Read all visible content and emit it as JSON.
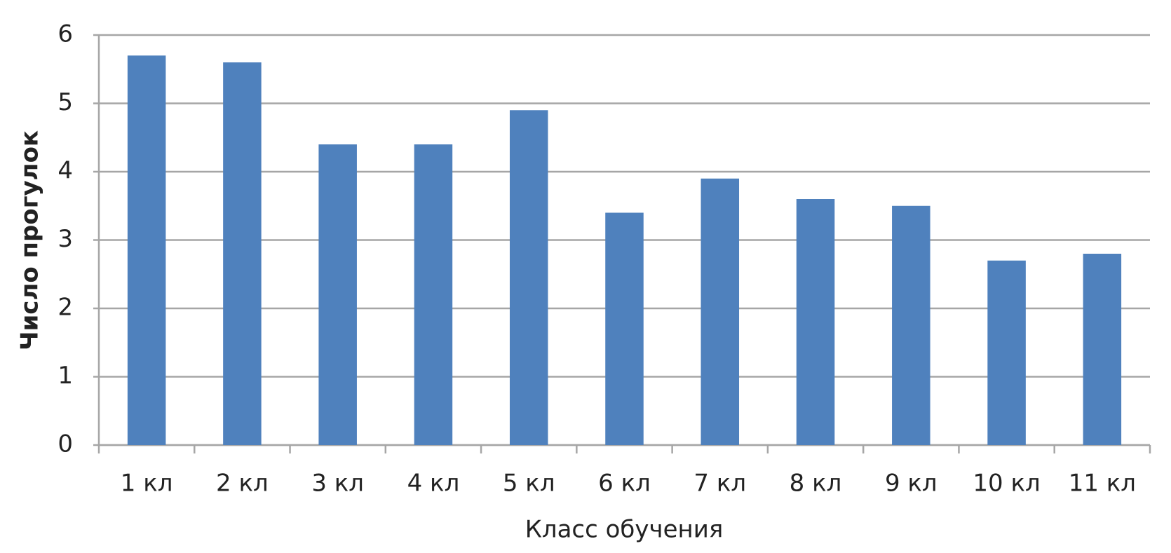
{
  "chart_data": {
    "type": "bar",
    "x_label": "Класс обучения",
    "y_label": "Число прогулок",
    "categories": [
      "1 кл",
      "2 кл",
      "3 кл",
      "4 кл",
      "5 кл",
      "6 кл",
      "7 кл",
      "8 кл",
      "9 кл",
      "10 кл",
      "11 кл"
    ],
    "values": [
      5.7,
      5.6,
      4.4,
      4.4,
      4.9,
      3.4,
      3.9,
      3.6,
      3.5,
      2.7,
      2.8
    ],
    "color": "#4f81bd",
    "ylim": [
      0,
      6
    ],
    "yticks": [
      0,
      1,
      2,
      3,
      4,
      5,
      6
    ],
    "grid": true
  }
}
